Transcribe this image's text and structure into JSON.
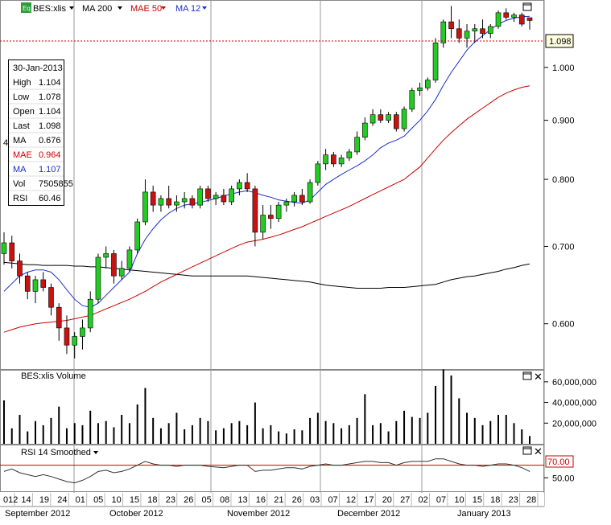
{
  "header": {
    "badge": "Eq",
    "symbol": "BES:xlis",
    "indicators": [
      {
        "label": "MA 200",
        "color": "#000000"
      },
      {
        "label": "MAE 50",
        "color": "#cc0000"
      },
      {
        "label": "MA 12",
        "color": "#1a2ecc"
      }
    ]
  },
  "info_box": {
    "date": "30-Jan-2013",
    "rows": [
      {
        "label": "High",
        "value": "1.104",
        "color": "#000000"
      },
      {
        "label": "Low",
        "value": "1.078",
        "color": "#000000"
      },
      {
        "label": "Open",
        "value": "1.104",
        "color": "#000000"
      },
      {
        "label": "Last",
        "value": "1.098",
        "color": "#000000"
      },
      {
        "label": "MA",
        "value": "0.676",
        "color": "#000000"
      },
      {
        "label": "MAE",
        "value": "0.964",
        "color": "#cc0000"
      },
      {
        "label": "MA",
        "value": "1.107",
        "color": "#1a2ecc"
      },
      {
        "label": "Vol",
        "value": "7505855",
        "color": "#000000"
      },
      {
        "label": "RSI",
        "value": "60.46",
        "color": "#000000"
      }
    ]
  },
  "last_price_label": "1.098",
  "volume_title": "BES:xlis Volume",
  "rsi_title": "RSI 14 Smoothed",
  "rsi_level_label": "70.00",
  "side_marker": "4",
  "colors": {
    "up": "#22cc22",
    "down": "#cc1111",
    "ma200": "#000000",
    "mae50": "#cc0000",
    "ma12": "#1a2ecc",
    "grid": "#999999"
  },
  "chart_data": {
    "type": "candlestick",
    "x_axis": {
      "day_ticks": [
        "012",
        "14",
        "19",
        "24",
        "01",
        "05",
        "10",
        "15",
        "18",
        "23",
        "26",
        "05",
        "08",
        "13",
        "16",
        "21",
        "26",
        "03",
        "07",
        "12",
        "17",
        "20",
        "27",
        "02",
        "07",
        "10",
        "15",
        "18",
        "23",
        "28"
      ],
      "month_labels": [
        "September 2012",
        "October 2012",
        "November 2012",
        "December 2012",
        "January 2013"
      ]
    },
    "price_axis": {
      "ticks": [
        0.6,
        0.7,
        0.8,
        0.9,
        1.0
      ],
      "tick_labels": [
        "0.600",
        "0.700",
        "0.800",
        "0.900",
        "1.000"
      ],
      "range": [
        0.55,
        1.14
      ],
      "scale": "log",
      "last": 1.098
    },
    "ohlc": [
      [
        0.69,
        0.72,
        0.675,
        0.705
      ],
      [
        0.705,
        0.715,
        0.67,
        0.68
      ],
      [
        0.68,
        0.69,
        0.65,
        0.66
      ],
      [
        0.66,
        0.665,
        0.63,
        0.64
      ],
      [
        0.64,
        0.66,
        0.625,
        0.655
      ],
      [
        0.655,
        0.665,
        0.64,
        0.645
      ],
      [
        0.645,
        0.65,
        0.61,
        0.62
      ],
      [
        0.62,
        0.625,
        0.58,
        0.595
      ],
      [
        0.595,
        0.61,
        0.565,
        0.575
      ],
      [
        0.575,
        0.59,
        0.56,
        0.585
      ],
      [
        0.585,
        0.605,
        0.57,
        0.595
      ],
      [
        0.595,
        0.64,
        0.59,
        0.63
      ],
      [
        0.63,
        0.69,
        0.625,
        0.685
      ],
      [
        0.685,
        0.7,
        0.67,
        0.69
      ],
      [
        0.69,
        0.695,
        0.65,
        0.66
      ],
      [
        0.66,
        0.68,
        0.655,
        0.67
      ],
      [
        0.67,
        0.7,
        0.665,
        0.695
      ],
      [
        0.695,
        0.74,
        0.69,
        0.735
      ],
      [
        0.735,
        0.8,
        0.73,
        0.78
      ],
      [
        0.78,
        0.79,
        0.75,
        0.76
      ],
      [
        0.76,
        0.775,
        0.75,
        0.77
      ],
      [
        0.77,
        0.79,
        0.755,
        0.76
      ],
      [
        0.76,
        0.775,
        0.75,
        0.765
      ],
      [
        0.765,
        0.78,
        0.755,
        0.77
      ],
      [
        0.77,
        0.775,
        0.755,
        0.76
      ],
      [
        0.76,
        0.79,
        0.755,
        0.785
      ],
      [
        0.785,
        0.79,
        0.765,
        0.77
      ],
      [
        0.77,
        0.78,
        0.76,
        0.775
      ],
      [
        0.775,
        0.785,
        0.76,
        0.765
      ],
      [
        0.765,
        0.79,
        0.76,
        0.785
      ],
      [
        0.785,
        0.8,
        0.775,
        0.795
      ],
      [
        0.795,
        0.81,
        0.78,
        0.785
      ],
      [
        0.785,
        0.79,
        0.7,
        0.72
      ],
      [
        0.72,
        0.76,
        0.71,
        0.745
      ],
      [
        0.745,
        0.76,
        0.725,
        0.74
      ],
      [
        0.74,
        0.765,
        0.735,
        0.76
      ],
      [
        0.76,
        0.77,
        0.75,
        0.765
      ],
      [
        0.765,
        0.78,
        0.758,
        0.775
      ],
      [
        0.775,
        0.785,
        0.76,
        0.765
      ],
      [
        0.765,
        0.8,
        0.762,
        0.795
      ],
      [
        0.795,
        0.83,
        0.79,
        0.825
      ],
      [
        0.825,
        0.85,
        0.815,
        0.84
      ],
      [
        0.84,
        0.845,
        0.82,
        0.825
      ],
      [
        0.825,
        0.84,
        0.82,
        0.835
      ],
      [
        0.835,
        0.85,
        0.83,
        0.845
      ],
      [
        0.845,
        0.88,
        0.84,
        0.87
      ],
      [
        0.87,
        0.905,
        0.865,
        0.895
      ],
      [
        0.895,
        0.92,
        0.89,
        0.91
      ],
      [
        0.91,
        0.92,
        0.895,
        0.9
      ],
      [
        0.9,
        0.915,
        0.895,
        0.91
      ],
      [
        0.91,
        0.915,
        0.88,
        0.885
      ],
      [
        0.885,
        0.925,
        0.88,
        0.92
      ],
      [
        0.92,
        0.96,
        0.915,
        0.955
      ],
      [
        0.955,
        0.97,
        0.945,
        0.96
      ],
      [
        0.96,
        0.98,
        0.955,
        0.975
      ],
      [
        0.975,
        1.06,
        0.97,
        1.05
      ],
      [
        1.05,
        1.1,
        1.04,
        1.095
      ],
      [
        1.095,
        1.13,
        1.06,
        1.08
      ],
      [
        1.08,
        1.1,
        1.05,
        1.06
      ],
      [
        1.06,
        1.09,
        1.04,
        1.075
      ],
      [
        1.075,
        1.09,
        1.05,
        1.08
      ],
      [
        1.08,
        1.1,
        1.06,
        1.07
      ],
      [
        1.07,
        1.09,
        1.06,
        1.085
      ],
      [
        1.085,
        1.12,
        1.08,
        1.115
      ],
      [
        1.115,
        1.125,
        1.1,
        1.105
      ],
      [
        1.105,
        1.115,
        1.095,
        1.11
      ],
      [
        1.11,
        1.115,
        1.085,
        1.09
      ],
      [
        1.104,
        1.104,
        1.078,
        1.098
      ]
    ],
    "ma200": [
      0.678,
      0.677,
      0.676,
      0.675,
      0.675,
      0.674,
      0.674,
      0.674,
      0.674,
      0.673,
      0.673,
      0.672,
      0.672,
      0.671,
      0.67,
      0.669,
      0.668,
      0.667,
      0.666,
      0.665,
      0.664,
      0.663,
      0.662,
      0.661,
      0.66,
      0.66,
      0.66,
      0.66,
      0.66,
      0.66,
      0.66,
      0.66,
      0.659,
      0.658,
      0.657,
      0.656,
      0.655,
      0.654,
      0.653,
      0.652,
      0.65,
      0.648,
      0.647,
      0.646,
      0.645,
      0.644,
      0.644,
      0.644,
      0.644,
      0.645,
      0.645,
      0.645,
      0.646,
      0.647,
      0.648,
      0.649,
      0.652,
      0.655,
      0.657,
      0.659,
      0.66,
      0.662,
      0.664,
      0.666,
      0.669,
      0.671,
      0.674,
      0.676
    ],
    "mae50": [
      0.59,
      0.593,
      0.596,
      0.598,
      0.6,
      0.601,
      0.602,
      0.603,
      0.604,
      0.606,
      0.608,
      0.61,
      0.614,
      0.618,
      0.622,
      0.626,
      0.63,
      0.635,
      0.64,
      0.646,
      0.652,
      0.657,
      0.662,
      0.667,
      0.672,
      0.677,
      0.682,
      0.687,
      0.692,
      0.697,
      0.702,
      0.706,
      0.708,
      0.71,
      0.713,
      0.716,
      0.72,
      0.724,
      0.728,
      0.733,
      0.738,
      0.743,
      0.748,
      0.753,
      0.758,
      0.764,
      0.77,
      0.776,
      0.782,
      0.788,
      0.794,
      0.8,
      0.81,
      0.82,
      0.835,
      0.85,
      0.865,
      0.878,
      0.89,
      0.902,
      0.912,
      0.922,
      0.932,
      0.942,
      0.95,
      0.956,
      0.961,
      0.964
    ],
    "ma12": [
      0.64,
      0.65,
      0.66,
      0.665,
      0.668,
      0.668,
      0.665,
      0.655,
      0.642,
      0.63,
      0.622,
      0.62,
      0.625,
      0.635,
      0.645,
      0.655,
      0.665,
      0.69,
      0.71,
      0.725,
      0.738,
      0.748,
      0.755,
      0.76,
      0.762,
      0.764,
      0.767,
      0.77,
      0.774,
      0.777,
      0.78,
      0.782,
      0.779,
      0.775,
      0.772,
      0.768,
      0.766,
      0.764,
      0.763,
      0.768,
      0.78,
      0.792,
      0.8,
      0.808,
      0.815,
      0.822,
      0.83,
      0.84,
      0.852,
      0.86,
      0.865,
      0.872,
      0.886,
      0.9,
      0.917,
      0.938,
      0.965,
      0.99,
      1.012,
      1.035,
      1.052,
      1.065,
      1.078,
      1.09,
      1.098,
      1.103,
      1.106,
      1.107
    ],
    "volume": {
      "axis_ticks": [
        "60,000,000",
        "40,000,000",
        "20,000,000"
      ],
      "tick_values": [
        60000000,
        40000000,
        20000000
      ],
      "max": 70000000,
      "values": [
        42000000,
        15000000,
        28000000,
        12000000,
        22000000,
        18000000,
        25000000,
        36000000,
        15000000,
        20000000,
        18000000,
        32000000,
        20000000,
        22000000,
        16000000,
        28000000,
        20000000,
        38000000,
        54000000,
        25000000,
        15000000,
        20000000,
        30000000,
        14000000,
        18000000,
        25000000,
        22000000,
        13000000,
        15000000,
        20000000,
        22000000,
        18000000,
        40000000,
        15000000,
        18000000,
        12000000,
        10000000,
        14000000,
        13000000,
        25000000,
        30000000,
        22000000,
        20000000,
        15000000,
        18000000,
        25000000,
        48000000,
        18000000,
        20000000,
        12000000,
        22000000,
        32000000,
        26000000,
        25000000,
        30000000,
        56000000,
        72000000,
        66000000,
        44000000,
        30000000,
        25000000,
        18000000,
        22000000,
        28000000,
        28000000,
        20000000,
        14000000,
        7505855
      ]
    },
    "rsi": {
      "level": 70,
      "tick_labels": [
        "50.00"
      ],
      "tick_values": [
        50
      ],
      "range": [
        30,
        100
      ],
      "values": [
        60,
        64,
        58,
        55,
        52,
        55,
        52,
        48,
        44,
        42,
        46,
        52,
        60,
        62,
        58,
        60,
        64,
        70,
        76,
        72,
        70,
        70,
        68,
        70,
        70,
        70,
        68,
        67,
        66,
        68,
        70,
        70,
        60,
        62,
        62,
        64,
        66,
        66,
        64,
        68,
        70,
        72,
        70,
        70,
        72,
        74,
        76,
        76,
        74,
        74,
        70,
        74,
        76,
        76,
        76,
        80,
        80,
        76,
        72,
        70,
        70,
        68,
        70,
        72,
        72,
        70,
        66,
        60
      ]
    }
  }
}
